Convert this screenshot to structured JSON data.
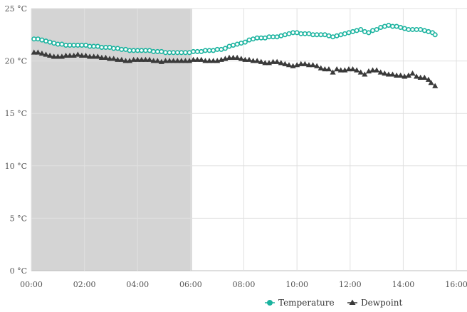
{
  "chart_data": {
    "type": "line",
    "title": "",
    "xlabel": "",
    "ylabel": "",
    "x_ticks": [
      "00:00",
      "02:00",
      "04:00",
      "06:00",
      "08:00",
      "10:00",
      "12:00",
      "14:00",
      "16:00"
    ],
    "y_ticks": [
      "0 °C",
      "5 °C",
      "10 °C",
      "15 °C",
      "20 °C",
      "25 °C"
    ],
    "x_range_hours": [
      0,
      16.4
    ],
    "ylim": [
      0,
      25
    ],
    "grid": true,
    "shaded_interval_hours": [
      0,
      6.05
    ],
    "legend_position": "bottom-right",
    "series": [
      {
        "name": "Temperature",
        "color": "#1ab39f",
        "marker": "circle",
        "points": [
          [
            0.1,
            22.1
          ],
          [
            0.25,
            22.1
          ],
          [
            0.4,
            22.0
          ],
          [
            0.55,
            21.9
          ],
          [
            0.7,
            21.8
          ],
          [
            0.85,
            21.7
          ],
          [
            1.0,
            21.6
          ],
          [
            1.15,
            21.6
          ],
          [
            1.3,
            21.5
          ],
          [
            1.45,
            21.5
          ],
          [
            1.6,
            21.5
          ],
          [
            1.75,
            21.5
          ],
          [
            1.9,
            21.5
          ],
          [
            2.05,
            21.5
          ],
          [
            2.2,
            21.4
          ],
          [
            2.35,
            21.4
          ],
          [
            2.5,
            21.4
          ],
          [
            2.65,
            21.3
          ],
          [
            2.8,
            21.3
          ],
          [
            2.95,
            21.3
          ],
          [
            3.1,
            21.2
          ],
          [
            3.25,
            21.2
          ],
          [
            3.4,
            21.1
          ],
          [
            3.55,
            21.1
          ],
          [
            3.7,
            21.0
          ],
          [
            3.85,
            21.0
          ],
          [
            4.0,
            21.0
          ],
          [
            4.15,
            21.0
          ],
          [
            4.3,
            21.0
          ],
          [
            4.45,
            21.0
          ],
          [
            4.6,
            20.9
          ],
          [
            4.75,
            20.9
          ],
          [
            4.9,
            20.9
          ],
          [
            5.05,
            20.8
          ],
          [
            5.2,
            20.8
          ],
          [
            5.35,
            20.8
          ],
          [
            5.5,
            20.8
          ],
          [
            5.65,
            20.8
          ],
          [
            5.8,
            20.8
          ],
          [
            5.95,
            20.8
          ],
          [
            6.1,
            20.9
          ],
          [
            6.25,
            20.9
          ],
          [
            6.4,
            20.9
          ],
          [
            6.55,
            21.0
          ],
          [
            6.7,
            21.0
          ],
          [
            6.85,
            21.0
          ],
          [
            7.0,
            21.1
          ],
          [
            7.15,
            21.1
          ],
          [
            7.3,
            21.2
          ],
          [
            7.45,
            21.4
          ],
          [
            7.6,
            21.5
          ],
          [
            7.75,
            21.6
          ],
          [
            7.9,
            21.7
          ],
          [
            8.05,
            21.8
          ],
          [
            8.2,
            22.0
          ],
          [
            8.35,
            22.1
          ],
          [
            8.5,
            22.2
          ],
          [
            8.65,
            22.2
          ],
          [
            8.8,
            22.2
          ],
          [
            8.95,
            22.3
          ],
          [
            9.1,
            22.3
          ],
          [
            9.25,
            22.3
          ],
          [
            9.4,
            22.4
          ],
          [
            9.55,
            22.5
          ],
          [
            9.7,
            22.6
          ],
          [
            9.85,
            22.7
          ],
          [
            10.0,
            22.7
          ],
          [
            10.15,
            22.6
          ],
          [
            10.3,
            22.6
          ],
          [
            10.45,
            22.6
          ],
          [
            10.6,
            22.5
          ],
          [
            10.75,
            22.5
          ],
          [
            10.9,
            22.5
          ],
          [
            11.05,
            22.5
          ],
          [
            11.2,
            22.4
          ],
          [
            11.35,
            22.3
          ],
          [
            11.5,
            22.4
          ],
          [
            11.65,
            22.5
          ],
          [
            11.8,
            22.6
          ],
          [
            11.95,
            22.7
          ],
          [
            12.1,
            22.8
          ],
          [
            12.25,
            22.9
          ],
          [
            12.4,
            23.0
          ],
          [
            12.55,
            22.8
          ],
          [
            12.7,
            22.7
          ],
          [
            12.85,
            22.9
          ],
          [
            13.0,
            23.0
          ],
          [
            13.15,
            23.2
          ],
          [
            13.3,
            23.3
          ],
          [
            13.45,
            23.4
          ],
          [
            13.6,
            23.3
          ],
          [
            13.75,
            23.3
          ],
          [
            13.9,
            23.2
          ],
          [
            14.05,
            23.1
          ],
          [
            14.2,
            23.0
          ],
          [
            14.35,
            23.0
          ],
          [
            14.5,
            23.0
          ],
          [
            14.65,
            23.0
          ],
          [
            14.8,
            22.9
          ],
          [
            14.95,
            22.8
          ],
          [
            15.1,
            22.7
          ],
          [
            15.2,
            22.5
          ]
        ]
      },
      {
        "name": "Dewpoint",
        "color": "#3a3a3a",
        "marker": "triangle",
        "points": [
          [
            0.1,
            20.8
          ],
          [
            0.25,
            20.8
          ],
          [
            0.4,
            20.7
          ],
          [
            0.55,
            20.6
          ],
          [
            0.7,
            20.5
          ],
          [
            0.85,
            20.4
          ],
          [
            1.0,
            20.4
          ],
          [
            1.15,
            20.4
          ],
          [
            1.3,
            20.5
          ],
          [
            1.45,
            20.5
          ],
          [
            1.6,
            20.5
          ],
          [
            1.75,
            20.6
          ],
          [
            1.9,
            20.5
          ],
          [
            2.05,
            20.5
          ],
          [
            2.2,
            20.4
          ],
          [
            2.35,
            20.4
          ],
          [
            2.5,
            20.4
          ],
          [
            2.65,
            20.3
          ],
          [
            2.8,
            20.3
          ],
          [
            2.95,
            20.2
          ],
          [
            3.1,
            20.2
          ],
          [
            3.25,
            20.1
          ],
          [
            3.4,
            20.1
          ],
          [
            3.55,
            20.0
          ],
          [
            3.7,
            20.0
          ],
          [
            3.85,
            20.1
          ],
          [
            4.0,
            20.1
          ],
          [
            4.15,
            20.1
          ],
          [
            4.3,
            20.1
          ],
          [
            4.45,
            20.1
          ],
          [
            4.6,
            20.0
          ],
          [
            4.75,
            20.0
          ],
          [
            4.9,
            19.9
          ],
          [
            5.05,
            20.0
          ],
          [
            5.2,
            20.0
          ],
          [
            5.35,
            20.0
          ],
          [
            5.5,
            20.0
          ],
          [
            5.65,
            20.0
          ],
          [
            5.8,
            20.0
          ],
          [
            5.95,
            20.0
          ],
          [
            6.1,
            20.1
          ],
          [
            6.25,
            20.1
          ],
          [
            6.4,
            20.1
          ],
          [
            6.55,
            20.0
          ],
          [
            6.7,
            20.0
          ],
          [
            6.85,
            20.0
          ],
          [
            7.0,
            20.0
          ],
          [
            7.15,
            20.1
          ],
          [
            7.3,
            20.2
          ],
          [
            7.45,
            20.3
          ],
          [
            7.6,
            20.3
          ],
          [
            7.75,
            20.3
          ],
          [
            7.9,
            20.2
          ],
          [
            8.05,
            20.1
          ],
          [
            8.2,
            20.1
          ],
          [
            8.35,
            20.0
          ],
          [
            8.5,
            20.0
          ],
          [
            8.65,
            19.9
          ],
          [
            8.8,
            19.8
          ],
          [
            8.95,
            19.8
          ],
          [
            9.1,
            19.9
          ],
          [
            9.25,
            19.9
          ],
          [
            9.4,
            19.8
          ],
          [
            9.55,
            19.7
          ],
          [
            9.7,
            19.6
          ],
          [
            9.85,
            19.5
          ],
          [
            10.0,
            19.6
          ],
          [
            10.15,
            19.7
          ],
          [
            10.3,
            19.7
          ],
          [
            10.45,
            19.6
          ],
          [
            10.6,
            19.6
          ],
          [
            10.75,
            19.5
          ],
          [
            10.9,
            19.3
          ],
          [
            11.05,
            19.2
          ],
          [
            11.2,
            19.2
          ],
          [
            11.35,
            18.9
          ],
          [
            11.5,
            19.2
          ],
          [
            11.65,
            19.1
          ],
          [
            11.8,
            19.1
          ],
          [
            11.95,
            19.2
          ],
          [
            12.1,
            19.2
          ],
          [
            12.25,
            19.1
          ],
          [
            12.4,
            18.9
          ],
          [
            12.55,
            18.7
          ],
          [
            12.7,
            19.0
          ],
          [
            12.85,
            19.1
          ],
          [
            13.0,
            19.1
          ],
          [
            13.15,
            18.9
          ],
          [
            13.3,
            18.8
          ],
          [
            13.45,
            18.7
          ],
          [
            13.6,
            18.7
          ],
          [
            13.75,
            18.6
          ],
          [
            13.9,
            18.6
          ],
          [
            14.05,
            18.5
          ],
          [
            14.2,
            18.6
          ],
          [
            14.35,
            18.8
          ],
          [
            14.5,
            18.5
          ],
          [
            14.65,
            18.4
          ],
          [
            14.8,
            18.4
          ],
          [
            14.95,
            18.2
          ],
          [
            15.05,
            17.9
          ],
          [
            15.2,
            17.6
          ]
        ]
      }
    ]
  }
}
